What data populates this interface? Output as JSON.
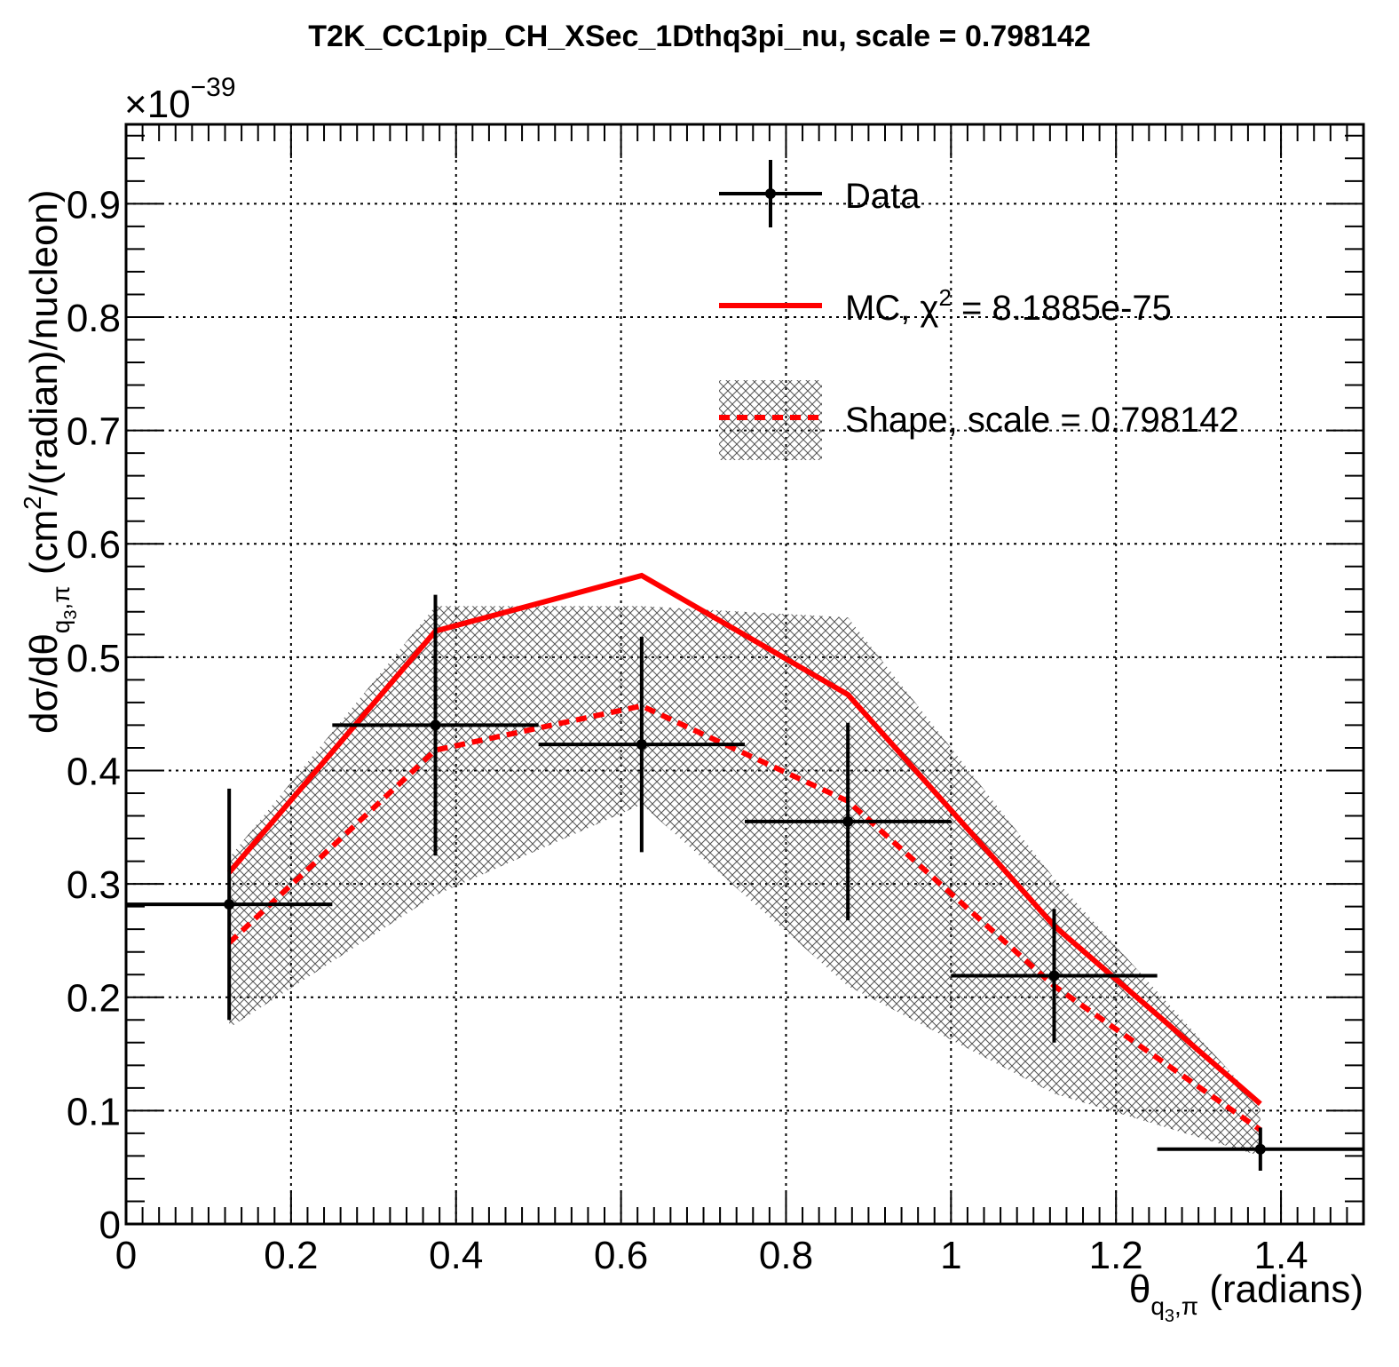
{
  "chart_data": {
    "type": "line",
    "title": "T2K_CC1pip_CH_XSec_1Dthq3pi_nu, scale = 0.798142",
    "xlabel": "(radians)",
    "ylabel": "(cm",
    "xlim": [
      0,
      1.5
    ],
    "ylim": [
      0,
      0.97
    ],
    "y_multiplier": "×10",
    "y_multiplier_exponent": "−39",
    "grid": true,
    "legend_position": "top-right",
    "x_ticks": [
      0,
      0.2,
      0.4,
      0.6,
      0.8,
      1,
      1.2,
      1.4
    ],
    "x_tick_labels": [
      "0",
      "0.2",
      "0.4",
      "0.6",
      "0.8",
      "1",
      "1.2",
      "1.4"
    ],
    "y_ticks": [
      0,
      0.1,
      0.2,
      0.3,
      0.4,
      0.5,
      0.6,
      0.7,
      0.8,
      0.9
    ],
    "y_tick_labels": [
      "0",
      "0.1",
      "0.2",
      "0.3",
      "0.4",
      "0.5",
      "0.6",
      "0.7",
      "0.8",
      "0.9"
    ],
    "data": {
      "name": "Data",
      "points": [
        {
          "x": 0.125,
          "y": 0.282,
          "xerr": 0.125,
          "ylo": 0.18,
          "yhi": 0.384
        },
        {
          "x": 0.375,
          "y": 0.44,
          "xerr": 0.125,
          "ylo": 0.325,
          "yhi": 0.555
        },
        {
          "x": 0.625,
          "y": 0.423,
          "xerr": 0.125,
          "ylo": 0.328,
          "yhi": 0.518
        },
        {
          "x": 0.875,
          "y": 0.355,
          "xerr": 0.125,
          "ylo": 0.268,
          "yhi": 0.442
        },
        {
          "x": 1.125,
          "y": 0.219,
          "xerr": 0.125,
          "ylo": 0.16,
          "yhi": 0.278
        },
        {
          "x": 1.375,
          "y": 0.066,
          "xerr": 0.125,
          "ylo": 0.047,
          "yhi": 0.085
        }
      ]
    },
    "mc": {
      "name": "MC, χ² = 8.1885e-75",
      "color": "#ff0000",
      "x": [
        0.125,
        0.375,
        0.625,
        0.875,
        1.125,
        1.375
      ],
      "y": [
        0.31,
        0.523,
        0.572,
        0.467,
        0.263,
        0.106
      ]
    },
    "shape": {
      "name": "Shape, scale = 0.798142",
      "color": "#ff0000",
      "band_color": "#555555",
      "x": [
        0.125,
        0.375,
        0.625,
        0.875,
        1.125,
        1.375
      ],
      "y": [
        0.248,
        0.418,
        0.457,
        0.373,
        0.21,
        0.083
      ],
      "band_lo": [
        0.173,
        0.29,
        0.37,
        0.21,
        0.115,
        0.06
      ],
      "band_hi": [
        0.323,
        0.545,
        0.545,
        0.535,
        0.305,
        0.105
      ]
    }
  },
  "legend": {
    "data_label": "Data",
    "mc_label_prefix": "MC, χ",
    "mc_label_sup": "2",
    "mc_label_suffix": " = 8.1885e-75",
    "shape_label": "Shape, scale = 0.798142"
  },
  "axis_text": {
    "x_theta": "θ",
    "x_sub": "q",
    "x_sub_sub": "3",
    "x_sub_tail": ",π",
    "x_units": "(radians)",
    "y_prefix": "dσ/dθ",
    "y_sub": "q",
    "y_sub_sub": "3",
    "y_sub_tail": ",π",
    "y_units_a": "(cm",
    "y_units_sup": "2",
    "y_units_b": "/(radian)/nucleon)"
  }
}
